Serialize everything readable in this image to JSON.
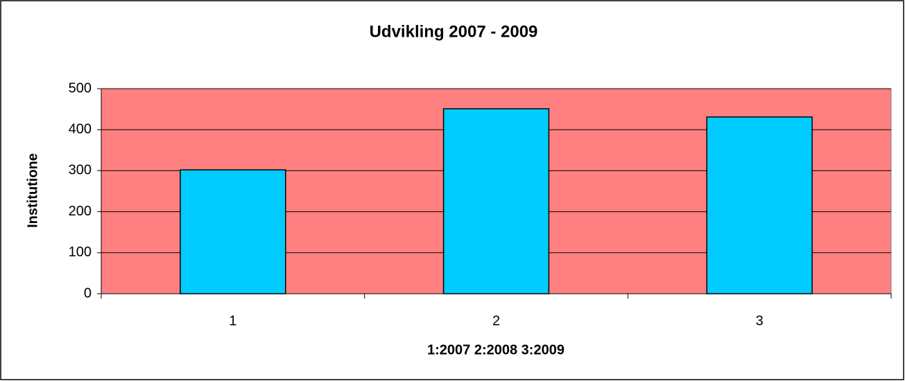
{
  "chart_data": {
    "type": "bar",
    "title": "Udvikling 2007 - 2009",
    "x_label": "1:2007 2:2008 3:2009",
    "y_label": "Institutione",
    "categories": [
      "1",
      "2",
      "3"
    ],
    "values": [
      302,
      451,
      431
    ],
    "color": "#00ccff",
    "plot_background": "#ff8080",
    "ylim": [
      0,
      500
    ],
    "yticks": [
      0,
      100,
      200,
      300,
      400,
      500
    ],
    "grid": true
  }
}
